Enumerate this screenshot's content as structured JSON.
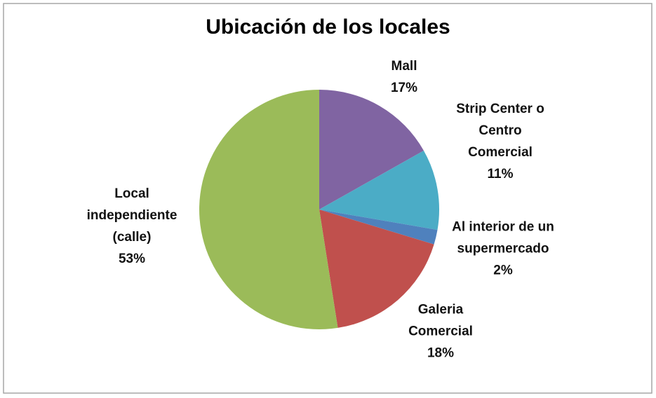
{
  "chart_data": {
    "type": "pie",
    "title": "Ubicación de los locales",
    "categories": [
      "Mall",
      "Strip Center o Centro Comercial",
      "Al interior de un supermercado",
      "Galeria Comercial",
      "Local independiente (calle)"
    ],
    "values": [
      17,
      11,
      2,
      18,
      53
    ],
    "value_labels": [
      "17%",
      "11%",
      "2%",
      "18%",
      "53%"
    ],
    "colors": [
      "#8064a2",
      "#4bacc6",
      "#4f81bd",
      "#c0504d",
      "#9bbb59"
    ]
  }
}
